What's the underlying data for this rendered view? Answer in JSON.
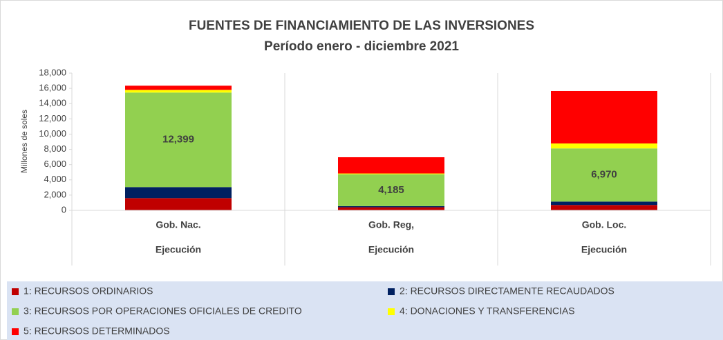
{
  "chart_data": {
    "type": "stacked_bar",
    "title": "FUENTES DE FINANCIAMIENTO DE LAS INVERSIONES",
    "subtitle": "Período enero - diciembre 2021",
    "y_label": "Millones de soles",
    "categories": [
      "Gob. Nac.",
      "Gob. Reg,",
      "Gob. Loc."
    ],
    "category_groups": [
      "Ejecución",
      "Ejecución",
      "Ejecución"
    ],
    "series": [
      {
        "name": "1: RECURSOS ORDINARIOS",
        "color": "#c00000",
        "values": [
          1600,
          400,
          700
        ]
      },
      {
        "name": "2: RECURSOS DIRECTAMENTE RECAUDADOS",
        "color": "#002060",
        "values": [
          1450,
          150,
          450
        ]
      },
      {
        "name": "3: RECURSOS POR OPERACIONES OFICIALES DE CREDITO",
        "color": "#92d050",
        "values": [
          12399,
          4185,
          6970
        ],
        "value_labels": [
          "12,399",
          "4,185",
          "6,970"
        ]
      },
      {
        "name": "4: DONACIONES Y TRANSFERENCIAS",
        "color": "#ffff00",
        "values": [
          350,
          100,
          650
        ]
      },
      {
        "name": "5: RECURSOS DETERMINADOS",
        "color": "#ff0000",
        "values": [
          550,
          2130,
          6880
        ]
      }
    ],
    "ylim": [
      0,
      18000
    ],
    "yticks": [
      0,
      {
        "value": 2000,
        "label": "2,000"
      },
      {
        "value": 4000,
        "label": "4,000"
      },
      {
        "value": 6000,
        "label": "6,000"
      },
      {
        "value": 8000,
        "label": "8,000"
      },
      {
        "value": 10000,
        "label": "10,000"
      },
      {
        "value": 12000,
        "label": "12,000"
      },
      {
        "value": 14000,
        "label": "14,000"
      },
      {
        "value": 16000,
        "label": "16,000"
      },
      {
        "value": 18000,
        "label": "18,000"
      }
    ],
    "legend": "bottom"
  }
}
